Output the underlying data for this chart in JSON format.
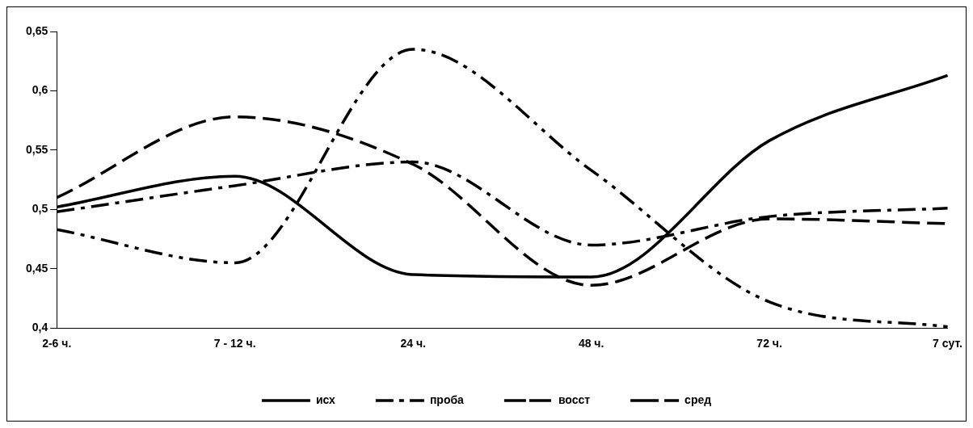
{
  "chart_data": {
    "type": "line",
    "categories": [
      "2-6 ч.",
      "7 - 12 ч.",
      "24 ч.",
      "48 ч.",
      "72 ч.",
      "7 сут."
    ],
    "series": [
      {
        "name": "исх",
        "color": "#000000",
        "line_style": "solid",
        "values": [
          0.502,
          0.528,
          0.445,
          0.443,
          0.558,
          0.613
        ]
      },
      {
        "name": "проба",
        "color": "#000000",
        "line_style": "dashdotdot",
        "values": [
          0.483,
          0.455,
          0.635,
          0.533,
          0.422,
          0.401
        ]
      },
      {
        "name": "восст",
        "color": "#000000",
        "line_style": "dashed",
        "values": [
          0.51,
          0.578,
          0.538,
          0.436,
          0.492,
          0.488
        ]
      },
      {
        "name": "сред",
        "color": "#000000",
        "line_style": "dashdot",
        "values": [
          0.498,
          0.52,
          0.54,
          0.47,
          0.494,
          0.501
        ]
      }
    ],
    "ylim": [
      0.4,
      0.65
    ],
    "yticks": [
      {
        "value": 0.4,
        "label": "0,4"
      },
      {
        "value": 0.45,
        "label": "0,45"
      },
      {
        "value": 0.5,
        "label": "0,5"
      },
      {
        "value": 0.55,
        "label": "0,55"
      },
      {
        "value": 0.6,
        "label": "0,6"
      },
      {
        "value": 0.65,
        "label": "0,65"
      }
    ],
    "grid": false,
    "legend": "bottom",
    "marker": "none"
  }
}
